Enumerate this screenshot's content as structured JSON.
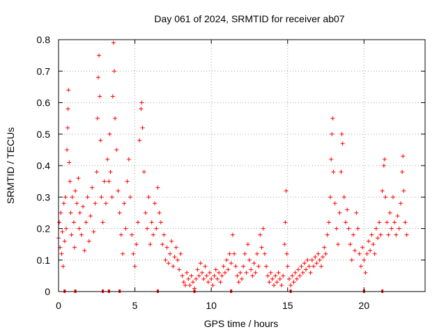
{
  "chart_data": {
    "type": "scatter",
    "title": "Day 061 of 2024, SRMTID for receiver ab07",
    "xlabel": "GPS time / hours",
    "ylabel": "SRMTID / TECUs",
    "xlim": [
      0,
      24
    ],
    "ylim": [
      0,
      0.8
    ],
    "xticks": [
      0,
      5,
      10,
      15,
      20
    ],
    "yticks": [
      0,
      0.1,
      0.2,
      0.3,
      0.4,
      0.5,
      0.6,
      0.7,
      0.8
    ],
    "grid": true,
    "marker": "+",
    "series_color": "#ff0000",
    "series": [
      {
        "name": "SRMTID",
        "points": [
          [
            0.0,
            0.17
          ],
          [
            0.05,
            0.22
          ],
          [
            0.1,
            0.14
          ],
          [
            0.15,
            0.25
          ],
          [
            0.2,
            0.12
          ],
          [
            0.25,
            0.19
          ],
          [
            0.3,
            0.08
          ],
          [
            0.35,
            0.28
          ],
          [
            0.4,
            0.16
          ],
          [
            0.45,
            0.3
          ],
          [
            0.5,
            0.2
          ],
          [
            0.55,
            0.45
          ],
          [
            0.6,
            0.52
          ],
          [
            0.62,
            0.58
          ],
          [
            0.65,
            0.64
          ],
          [
            0.7,
            0.41
          ],
          [
            0.75,
            0.35
          ],
          [
            0.8,
            0.25
          ],
          [
            0.85,
            0.18
          ],
          [
            0.9,
            0.3
          ],
          [
            1.0,
            0.22
          ],
          [
            1.05,
            0.14
          ],
          [
            1.1,
            0.32
          ],
          [
            1.2,
            0.28
          ],
          [
            1.3,
            0.36
          ],
          [
            1.35,
            0.2
          ],
          [
            1.4,
            0.25
          ],
          [
            1.5,
            0.18
          ],
          [
            1.6,
            0.27
          ],
          [
            1.7,
            0.13
          ],
          [
            1.8,
            0.22
          ],
          [
            1.9,
            0.3
          ],
          [
            2.0,
            0.16
          ],
          [
            2.1,
            0.24
          ],
          [
            2.2,
            0.33
          ],
          [
            2.3,
            0.19
          ],
          [
            2.4,
            0.28
          ],
          [
            2.5,
            0.38
          ],
          [
            2.55,
            0.55
          ],
          [
            2.6,
            0.68
          ],
          [
            2.65,
            0.75
          ],
          [
            2.7,
            0.62
          ],
          [
            2.75,
            0.48
          ],
          [
            2.8,
            0.3
          ],
          [
            2.9,
            0.22
          ],
          [
            3.0,
            0.35
          ],
          [
            3.1,
            0.28
          ],
          [
            3.2,
            0.42
          ],
          [
            3.3,
            0.35
          ],
          [
            3.35,
            0.5
          ],
          [
            3.4,
            0.38
          ],
          [
            3.5,
            0.3
          ],
          [
            3.55,
            0.62
          ],
          [
            3.6,
            0.79
          ],
          [
            3.65,
            0.7
          ],
          [
            3.7,
            0.55
          ],
          [
            3.8,
            0.45
          ],
          [
            3.9,
            0.32
          ],
          [
            4.0,
            0.25
          ],
          [
            4.1,
            0.18
          ],
          [
            4.2,
            0.12
          ],
          [
            4.3,
            0.28
          ],
          [
            4.4,
            0.2
          ],
          [
            4.5,
            0.35
          ],
          [
            4.6,
            0.42
          ],
          [
            4.7,
            0.3
          ],
          [
            4.8,
            0.18
          ],
          [
            4.9,
            0.12
          ],
          [
            5.0,
            0.08
          ],
          [
            5.1,
            0.15
          ],
          [
            5.2,
            0.22
          ],
          [
            5.3,
            0.48
          ],
          [
            5.4,
            0.58
          ],
          [
            5.45,
            0.6
          ],
          [
            5.5,
            0.52
          ],
          [
            5.6,
            0.38
          ],
          [
            5.7,
            0.25
          ],
          [
            5.8,
            0.2
          ],
          [
            5.9,
            0.3
          ],
          [
            6.0,
            0.15
          ],
          [
            6.1,
            0.22
          ],
          [
            6.2,
            0.18
          ],
          [
            6.3,
            0.28
          ],
          [
            6.4,
            0.2
          ],
          [
            6.5,
            0.33
          ],
          [
            6.6,
            0.25
          ],
          [
            6.7,
            0.22
          ],
          [
            6.8,
            0.15
          ],
          [
            6.9,
            0.18
          ],
          [
            7.0,
            0.1
          ],
          [
            7.1,
            0.14
          ],
          [
            7.2,
            0.09
          ],
          [
            7.3,
            0.12
          ],
          [
            7.4,
            0.16
          ],
          [
            7.5,
            0.08
          ],
          [
            7.6,
            0.11
          ],
          [
            7.7,
            0.14
          ],
          [
            7.8,
            0.1
          ],
          [
            7.9,
            0.07
          ],
          [
            8.0,
            0.12
          ],
          [
            8.1,
            0.05
          ],
          [
            8.2,
            0.03
          ],
          [
            8.3,
            0.02
          ],
          [
            8.4,
            0.06
          ],
          [
            8.5,
            0.04
          ],
          [
            8.6,
            0.02
          ],
          [
            8.7,
            0.05
          ],
          [
            8.8,
            0.03
          ],
          [
            8.9,
            0.01
          ],
          [
            9.0,
            0.04
          ],
          [
            9.1,
            0.07
          ],
          [
            9.2,
            0.05
          ],
          [
            9.3,
            0.09
          ],
          [
            9.4,
            0.06
          ],
          [
            9.5,
            0.04
          ],
          [
            9.6,
            0.08
          ],
          [
            9.7,
            0.05
          ],
          [
            9.8,
            0.03
          ],
          [
            9.9,
            0.06
          ],
          [
            10.0,
            0.04
          ],
          [
            10.1,
            0.02
          ],
          [
            10.2,
            0.05
          ],
          [
            10.3,
            0.07
          ],
          [
            10.4,
            0.04
          ],
          [
            10.5,
            0.06
          ],
          [
            10.6,
            0.03
          ],
          [
            10.7,
            0.05
          ],
          [
            10.8,
            0.08
          ],
          [
            10.9,
            0.06
          ],
          [
            11.0,
            0.1
          ],
          [
            11.1,
            0.07
          ],
          [
            11.2,
            0.12
          ],
          [
            11.3,
            0.09
          ],
          [
            11.4,
            0.18
          ],
          [
            11.5,
            0.12
          ],
          [
            11.6,
            0.08
          ],
          [
            11.7,
            0.05
          ],
          [
            11.8,
            0.03
          ],
          [
            11.9,
            0.06
          ],
          [
            12.0,
            0.04
          ],
          [
            12.1,
            0.08
          ],
          [
            12.2,
            0.12
          ],
          [
            12.3,
            0.06
          ],
          [
            12.4,
            0.15
          ],
          [
            12.5,
            0.1
          ],
          [
            12.6,
            0.07
          ],
          [
            12.7,
            0.05
          ],
          [
            12.8,
            0.09
          ],
          [
            12.9,
            0.06
          ],
          [
            13.0,
            0.12
          ],
          [
            13.1,
            0.08
          ],
          [
            13.2,
            0.18
          ],
          [
            13.3,
            0.14
          ],
          [
            13.4,
            0.2
          ],
          [
            13.5,
            0.12
          ],
          [
            13.6,
            0.08
          ],
          [
            13.7,
            0.05
          ],
          [
            13.8,
            0.03
          ],
          [
            13.9,
            0.06
          ],
          [
            14.0,
            0.04
          ],
          [
            14.1,
            0.02
          ],
          [
            14.2,
            0.05
          ],
          [
            14.3,
            0.03
          ],
          [
            14.4,
            0.06
          ],
          [
            14.5,
            0.04
          ],
          [
            14.6,
            0.02
          ],
          [
            14.7,
            0.05
          ],
          [
            14.8,
            0.15
          ],
          [
            14.85,
            0.22
          ],
          [
            14.9,
            0.32
          ],
          [
            14.95,
            0.12
          ],
          [
            15.0,
            0.08
          ],
          [
            15.1,
            0.04
          ],
          [
            15.2,
            0.02
          ],
          [
            15.3,
            0.05
          ],
          [
            15.4,
            0.03
          ],
          [
            15.5,
            0.06
          ],
          [
            15.6,
            0.04
          ],
          [
            15.7,
            0.07
          ],
          [
            15.8,
            0.05
          ],
          [
            15.9,
            0.08
          ],
          [
            16.0,
            0.06
          ],
          [
            16.1,
            0.09
          ],
          [
            16.2,
            0.07
          ],
          [
            16.3,
            0.1
          ],
          [
            16.4,
            0.08
          ],
          [
            16.5,
            0.06
          ],
          [
            16.6,
            0.1
          ],
          [
            16.7,
            0.08
          ],
          [
            16.8,
            0.11
          ],
          [
            16.9,
            0.09
          ],
          [
            17.0,
            0.12
          ],
          [
            17.1,
            0.1
          ],
          [
            17.2,
            0.08
          ],
          [
            17.3,
            0.11
          ],
          [
            17.4,
            0.14
          ],
          [
            17.5,
            0.12
          ],
          [
            17.6,
            0.18
          ],
          [
            17.7,
            0.22
          ],
          [
            17.8,
            0.3
          ],
          [
            17.85,
            0.42
          ],
          [
            17.9,
            0.5
          ],
          [
            17.95,
            0.55
          ],
          [
            18.0,
            0.38
          ],
          [
            18.1,
            0.28
          ],
          [
            18.2,
            0.2
          ],
          [
            18.3,
            0.15
          ],
          [
            18.4,
            0.25
          ],
          [
            18.5,
            0.38
          ],
          [
            18.55,
            0.5
          ],
          [
            18.6,
            0.47
          ],
          [
            18.7,
            0.3
          ],
          [
            18.8,
            0.22
          ],
          [
            18.9,
            0.26
          ],
          [
            19.0,
            0.2
          ],
          [
            19.1,
            0.15
          ],
          [
            19.2,
            0.1
          ],
          [
            19.3,
            0.18
          ],
          [
            19.4,
            0.13
          ],
          [
            19.5,
            0.25
          ],
          [
            19.6,
            0.2
          ],
          [
            19.7,
            0.12
          ],
          [
            19.8,
            0.08
          ],
          [
            19.9,
            0.14
          ],
          [
            20.0,
            0.1
          ],
          [
            20.1,
            0.06
          ],
          [
            20.2,
            0.12
          ],
          [
            20.3,
            0.16
          ],
          [
            20.4,
            0.13
          ],
          [
            20.5,
            0.18
          ],
          [
            20.6,
            0.15
          ],
          [
            20.7,
            0.12
          ],
          [
            20.8,
            0.2
          ],
          [
            20.9,
            0.17
          ],
          [
            21.0,
            0.22
          ],
          [
            21.1,
            0.18
          ],
          [
            21.2,
            0.32
          ],
          [
            21.3,
            0.4
          ],
          [
            21.35,
            0.42
          ],
          [
            21.4,
            0.3
          ],
          [
            21.5,
            0.22
          ],
          [
            21.6,
            0.18
          ],
          [
            21.7,
            0.25
          ],
          [
            21.8,
            0.2
          ],
          [
            21.9,
            0.3
          ],
          [
            22.0,
            0.22
          ],
          [
            22.1,
            0.18
          ],
          [
            22.2,
            0.24
          ],
          [
            22.3,
            0.2
          ],
          [
            22.4,
            0.28
          ],
          [
            22.5,
            0.38
          ],
          [
            22.55,
            0.43
          ],
          [
            22.6,
            0.32
          ],
          [
            22.7,
            0.22
          ],
          [
            22.8,
            0.18
          ]
        ]
      }
    ],
    "baseline_markers_x": [
      0.4,
      1.1,
      2.9,
      3.3,
      4.0,
      6.5,
      8.9,
      11.3,
      15.2,
      20.0,
      21.2
    ]
  }
}
